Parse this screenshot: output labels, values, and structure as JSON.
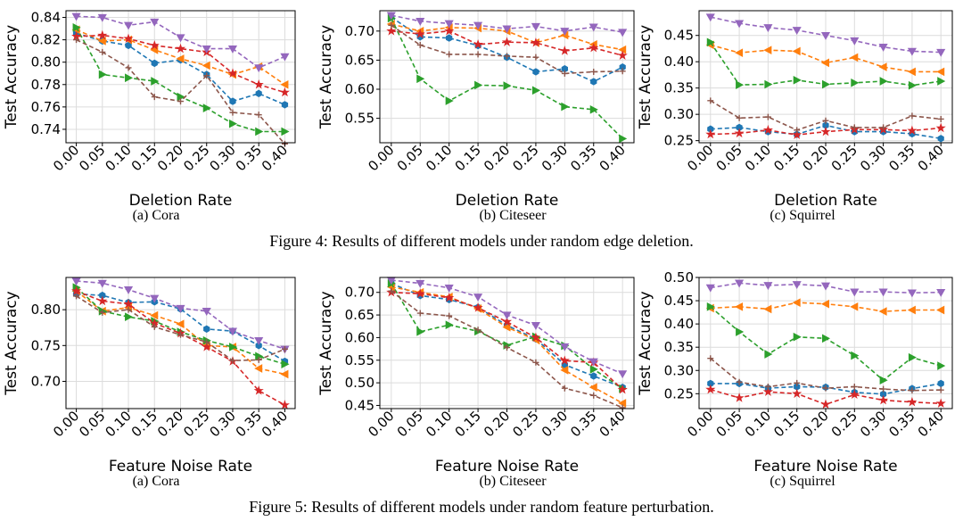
{
  "figures": [
    {
      "caption": "Figure 4: Results of different models under random edge deletion.",
      "xlabel": "Deletion Rate",
      "ylabel": "Test Accuracy"
    },
    {
      "caption": "Figure 5: Results of different models under random feature perturbation.",
      "xlabel": "Feature Noise Rate",
      "ylabel": "Test Accuracy"
    }
  ],
  "colors": {
    "blue": "#1f77b4",
    "orange": "#ff7f0e",
    "green": "#2ca02c",
    "red": "#d62728",
    "purple": "#9467bd",
    "brown": "#8c564b"
  },
  "chart_data": [
    {
      "type": "line",
      "figure": 0,
      "subcaption": "(a)  Cora",
      "xlabel": "Deletion Rate",
      "ylabel": "Test Accuracy",
      "x": [
        "0.00",
        "0.05",
        "0.10",
        "0.15",
        "0.20",
        "0.25",
        "0.30",
        "0.35",
        "0.40"
      ],
      "ylim": [
        0.728,
        0.846
      ],
      "yticks": [
        0.74,
        0.76,
        0.78,
        0.8,
        0.82,
        0.84
      ],
      "yticklabels": [
        "0.74",
        "0.76",
        "0.78",
        "0.80",
        "0.82",
        "0.84"
      ],
      "grid": true,
      "series": [
        {
          "color": "blue",
          "marker": "hexagon",
          "values": [
            0.826,
            0.819,
            0.815,
            0.799,
            0.802,
            0.789,
            0.765,
            0.772,
            0.762
          ]
        },
        {
          "color": "orange",
          "marker": "tri-left",
          "values": [
            0.829,
            0.819,
            0.82,
            0.811,
            0.803,
            0.797,
            0.789,
            0.796,
            0.78
          ]
        },
        {
          "color": "green",
          "marker": "tri-right",
          "values": [
            0.831,
            0.789,
            0.786,
            0.783,
            0.769,
            0.759,
            0.745,
            0.738,
            0.738
          ]
        },
        {
          "color": "red",
          "marker": "star",
          "values": [
            0.823,
            0.824,
            0.821,
            0.815,
            0.812,
            0.809,
            0.79,
            0.78,
            0.773
          ]
        },
        {
          "color": "purple",
          "marker": "tri-down",
          "values": [
            0.841,
            0.84,
            0.833,
            0.836,
            0.822,
            0.812,
            0.812,
            0.795,
            0.805
          ]
        },
        {
          "color": "brown",
          "marker": "plus",
          "values": [
            0.82,
            0.809,
            0.795,
            0.769,
            0.765,
            0.788,
            0.755,
            0.753,
            0.727
          ]
        }
      ]
    },
    {
      "type": "line",
      "figure": 0,
      "subcaption": "(b)  Citeseer",
      "xlabel": "Deletion Rate",
      "ylabel": "Test Accuracy",
      "x": [
        "0.00",
        "0.05",
        "0.10",
        "0.15",
        "0.20",
        "0.25",
        "0.30",
        "0.35",
        "0.40"
      ],
      "ylim": [
        0.508,
        0.735
      ],
      "yticks": [
        0.55,
        0.6,
        0.65,
        0.7
      ],
      "yticklabels": [
        "0.55",
        "0.60",
        "0.65",
        "0.70"
      ],
      "grid": true,
      "series": [
        {
          "color": "blue",
          "marker": "hexagon",
          "values": [
            0.724,
            0.69,
            0.688,
            0.675,
            0.655,
            0.63,
            0.635,
            0.613,
            0.638
          ]
        },
        {
          "color": "orange",
          "marker": "tri-left",
          "values": [
            0.712,
            0.7,
            0.706,
            0.705,
            0.7,
            0.68,
            0.693,
            0.677,
            0.668
          ]
        },
        {
          "color": "green",
          "marker": "tri-right",
          "values": [
            0.722,
            0.618,
            0.58,
            0.607,
            0.606,
            0.598,
            0.57,
            0.565,
            0.515
          ]
        },
        {
          "color": "red",
          "marker": "star",
          "values": [
            0.7,
            0.695,
            0.7,
            0.677,
            0.681,
            0.68,
            0.666,
            0.671,
            0.658
          ]
        },
        {
          "color": "purple",
          "marker": "tri-down",
          "values": [
            0.727,
            0.717,
            0.713,
            0.71,
            0.704,
            0.708,
            0.7,
            0.707,
            0.698
          ]
        },
        {
          "color": "brown",
          "marker": "plus",
          "values": [
            0.71,
            0.676,
            0.66,
            0.66,
            0.657,
            0.655,
            0.627,
            0.63,
            0.631
          ]
        }
      ]
    },
    {
      "type": "line",
      "figure": 0,
      "subcaption": "(c)  Squirrel",
      "xlabel": "Deletion Rate",
      "ylabel": "Test Accuracy",
      "x": [
        "0.00",
        "0.05",
        "0.10",
        "0.15",
        "0.20",
        "0.25",
        "0.30",
        "0.35",
        "0.40"
      ],
      "ylim": [
        0.246,
        0.497
      ],
      "yticks": [
        0.25,
        0.3,
        0.35,
        0.4,
        0.45
      ],
      "yticklabels": [
        "0.25",
        "0.30",
        "0.35",
        "0.40",
        "0.45"
      ],
      "grid": true,
      "series": [
        {
          "color": "blue",
          "marker": "hexagon",
          "values": [
            0.272,
            0.275,
            0.267,
            0.262,
            0.279,
            0.267,
            0.267,
            0.263,
            0.254
          ]
        },
        {
          "color": "orange",
          "marker": "tri-left",
          "values": [
            0.432,
            0.417,
            0.422,
            0.42,
            0.398,
            0.408,
            0.39,
            0.381,
            0.381
          ]
        },
        {
          "color": "green",
          "marker": "tri-right",
          "values": [
            0.437,
            0.356,
            0.357,
            0.365,
            0.357,
            0.36,
            0.363,
            0.355,
            0.363
          ]
        },
        {
          "color": "red",
          "marker": "star",
          "values": [
            0.262,
            0.264,
            0.27,
            0.261,
            0.267,
            0.271,
            0.271,
            0.269,
            0.274
          ]
        },
        {
          "color": "purple",
          "marker": "tri-down",
          "values": [
            0.485,
            0.473,
            0.465,
            0.46,
            0.45,
            0.44,
            0.428,
            0.42,
            0.418
          ]
        },
        {
          "color": "brown",
          "marker": "plus",
          "values": [
            0.326,
            0.293,
            0.295,
            0.27,
            0.288,
            0.275,
            0.275,
            0.297,
            0.291
          ]
        }
      ]
    },
    {
      "type": "line",
      "figure": 1,
      "subcaption": "(a)  Cora",
      "xlabel": "Feature Noise Rate",
      "ylabel": "Test Accuracy",
      "x": [
        "0.00",
        "0.05",
        "0.10",
        "0.15",
        "0.20",
        "0.25",
        "0.30",
        "0.35",
        "0.40"
      ],
      "ylim": [
        0.662,
        0.845
      ],
      "yticks": [
        0.7,
        0.75,
        0.8
      ],
      "yticklabels": [
        "0.70",
        "0.75",
        "0.80"
      ],
      "grid": true,
      "series": [
        {
          "color": "blue",
          "marker": "hexagon",
          "values": [
            0.822,
            0.82,
            0.81,
            0.811,
            0.801,
            0.773,
            0.77,
            0.75,
            0.728
          ]
        },
        {
          "color": "orange",
          "marker": "tri-left",
          "values": [
            0.826,
            0.798,
            0.803,
            0.792,
            0.78,
            0.75,
            0.748,
            0.718,
            0.71
          ]
        },
        {
          "color": "green",
          "marker": "tri-right",
          "values": [
            0.831,
            0.798,
            0.79,
            0.784,
            0.769,
            0.757,
            0.748,
            0.735,
            0.724
          ]
        },
        {
          "color": "red",
          "marker": "star",
          "values": [
            0.826,
            0.812,
            0.808,
            0.781,
            0.767,
            0.748,
            0.728,
            0.687,
            0.667
          ]
        },
        {
          "color": "purple",
          "marker": "tri-down",
          "values": [
            0.84,
            0.837,
            0.828,
            0.816,
            0.802,
            0.798,
            0.77,
            0.757,
            0.745
          ]
        },
        {
          "color": "brown",
          "marker": "plus",
          "values": [
            0.819,
            0.796,
            0.8,
            0.776,
            0.765,
            0.755,
            0.729,
            0.73,
            0.745
          ]
        }
      ]
    },
    {
      "type": "line",
      "figure": 1,
      "subcaption": "(b)  Citeseer",
      "xlabel": "Feature Noise Rate",
      "ylabel": "Test Accuracy",
      "x": [
        "0.00",
        "0.05",
        "0.10",
        "0.15",
        "0.20",
        "0.25",
        "0.30",
        "0.35",
        "0.40"
      ],
      "ylim": [
        0.443,
        0.733
      ],
      "yticks": [
        0.45,
        0.5,
        0.55,
        0.6,
        0.65,
        0.7
      ],
      "yticklabels": [
        "0.45",
        "0.50",
        "0.55",
        "0.60",
        "0.65",
        "0.70"
      ],
      "grid": true,
      "series": [
        {
          "color": "blue",
          "marker": "hexagon",
          "values": [
            0.72,
            0.693,
            0.684,
            0.667,
            0.627,
            0.597,
            0.54,
            0.515,
            0.49
          ]
        },
        {
          "color": "orange",
          "marker": "tri-left",
          "values": [
            0.712,
            0.7,
            0.69,
            0.664,
            0.623,
            0.595,
            0.528,
            0.49,
            0.455
          ]
        },
        {
          "color": "green",
          "marker": "tri-right",
          "values": [
            0.72,
            0.613,
            0.628,
            0.614,
            0.583,
            0.602,
            0.582,
            0.53,
            0.487
          ]
        },
        {
          "color": "red",
          "marker": "star",
          "values": [
            0.7,
            0.697,
            0.688,
            0.666,
            0.635,
            0.6,
            0.549,
            0.545,
            0.485
          ]
        },
        {
          "color": "purple",
          "marker": "tri-down",
          "values": [
            0.727,
            0.72,
            0.71,
            0.69,
            0.65,
            0.627,
            0.58,
            0.547,
            0.52
          ]
        },
        {
          "color": "brown",
          "marker": "plus",
          "values": [
            0.703,
            0.654,
            0.648,
            0.617,
            0.578,
            0.545,
            0.488,
            0.472,
            0.445
          ]
        }
      ]
    },
    {
      "type": "line",
      "figure": 1,
      "subcaption": "(c)  Squirrel",
      "xlabel": "Feature Noise Rate",
      "ylabel": "Test Accuracy",
      "x": [
        "0.00",
        "0.05",
        "0.10",
        "0.15",
        "0.20",
        "0.25",
        "0.30",
        "0.35",
        "0.40"
      ],
      "ylim": [
        0.218,
        0.5
      ],
      "yticks": [
        0.25,
        0.3,
        0.35,
        0.4,
        0.45,
        0.5
      ],
      "yticklabels": [
        "0.25",
        "0.30",
        "0.35",
        "0.40",
        "0.45",
        "0.50"
      ],
      "grid": true,
      "series": [
        {
          "color": "blue",
          "marker": "hexagon",
          "values": [
            0.272,
            0.272,
            0.262,
            0.265,
            0.264,
            0.253,
            0.249,
            0.261,
            0.272
          ]
        },
        {
          "color": "orange",
          "marker": "tri-left",
          "values": [
            0.434,
            0.437,
            0.432,
            0.446,
            0.443,
            0.437,
            0.427,
            0.43,
            0.43
          ]
        },
        {
          "color": "green",
          "marker": "tri-right",
          "values": [
            0.437,
            0.383,
            0.335,
            0.372,
            0.369,
            0.332,
            0.279,
            0.328,
            0.31
          ]
        },
        {
          "color": "red",
          "marker": "star",
          "values": [
            0.259,
            0.241,
            0.254,
            0.25,
            0.227,
            0.248,
            0.236,
            0.232,
            0.229
          ]
        },
        {
          "color": "purple",
          "marker": "tri-down",
          "values": [
            0.478,
            0.488,
            0.483,
            0.485,
            0.482,
            0.469,
            0.469,
            0.467,
            0.468
          ]
        },
        {
          "color": "brown",
          "marker": "plus",
          "values": [
            0.326,
            0.275,
            0.265,
            0.273,
            0.262,
            0.265,
            0.26,
            0.257,
            0.258
          ]
        }
      ]
    }
  ]
}
